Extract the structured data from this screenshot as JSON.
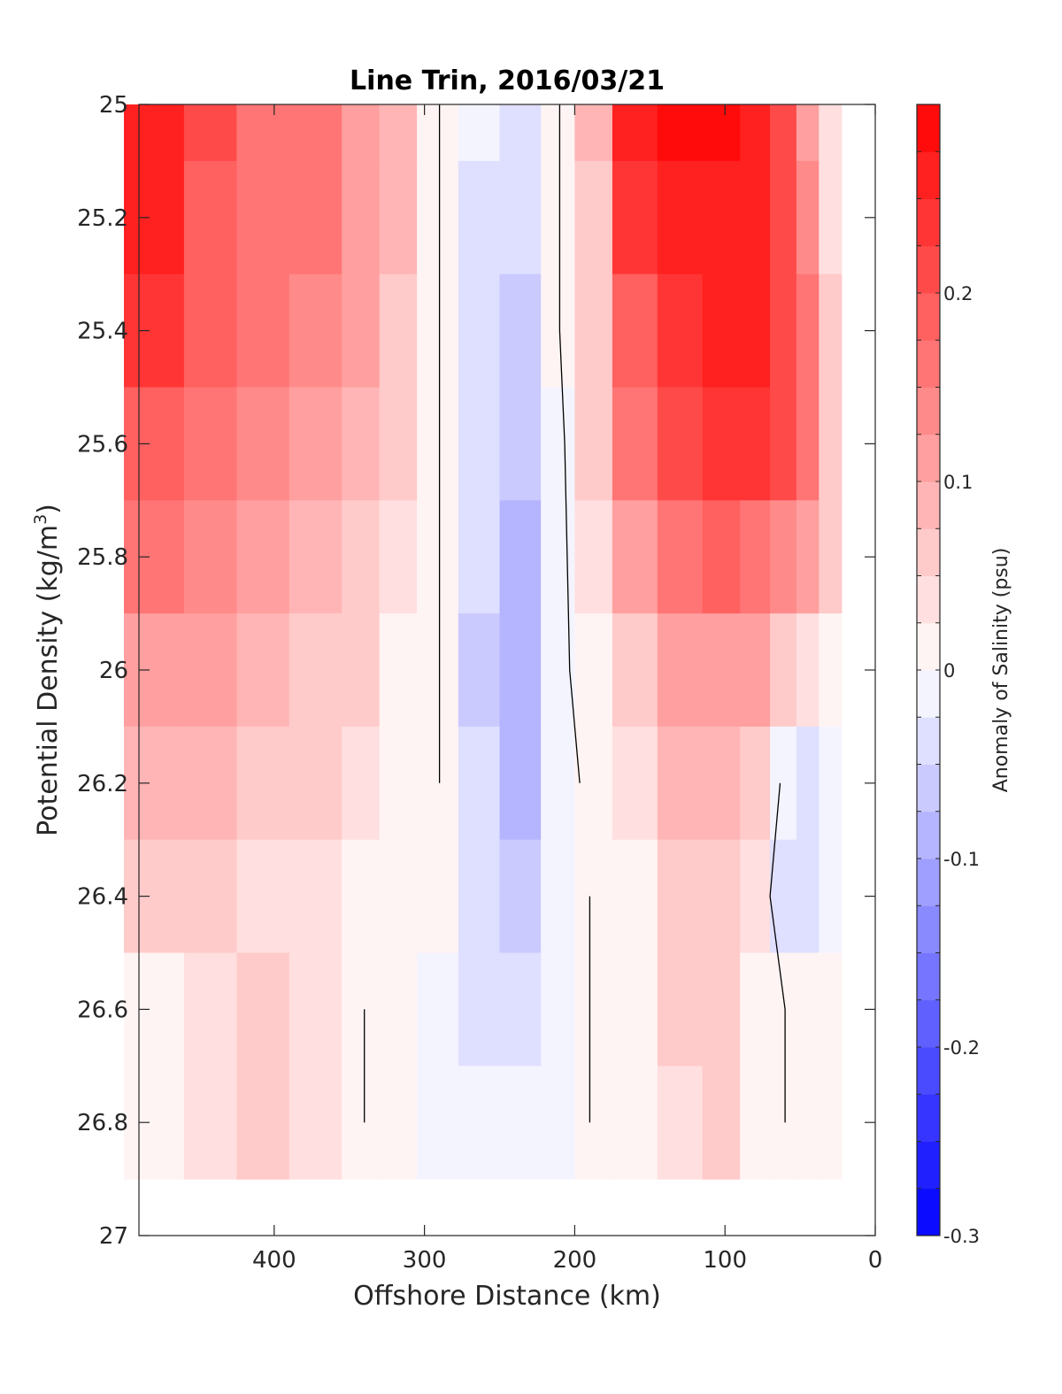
{
  "chart_data": {
    "type": "heatmap",
    "title": "Line Trin, 2016/03/21",
    "xlabel": "Offshore Distance (km)",
    "ylabel_main": "Potential Density (kg/m",
    "ylabel_sup": "3",
    "ylabel_close": ")",
    "colorbar_label": "Anomaly of Salinity (psu)",
    "x_reversed": true,
    "xlim": [
      0,
      490
    ],
    "ylim": [
      25,
      27
    ],
    "y_reversed": true,
    "x_ticks": [
      400,
      300,
      200,
      100,
      0
    ],
    "x_tick_labels": [
      "400",
      "300",
      "200",
      "100",
      "0"
    ],
    "y_ticks": [
      25,
      25.2,
      25.4,
      25.6,
      25.8,
      26,
      26.2,
      26.4,
      26.6,
      26.8,
      27
    ],
    "y_tick_labels": [
      "25",
      "25.2",
      "25.4",
      "25.6",
      "25.8",
      "26",
      "26.2",
      "26.4",
      "26.6",
      "26.8",
      "27"
    ],
    "clim": [
      -0.3,
      0.3
    ],
    "colorbar_ticks": [
      0.2,
      0.1,
      0,
      -0.1,
      -0.2,
      -0.3
    ],
    "colorbar_tick_labels": [
      "0.2",
      "0.1",
      "0",
      "-0.1",
      "-0.2",
      "-0.3"
    ],
    "colormap": "blue-white-red",
    "colormap_levels": 24,
    "distance_km": [
      480,
      440,
      410,
      370,
      340,
      320,
      290,
      265,
      235,
      210,
      190,
      160,
      130,
      100,
      80,
      60,
      45,
      30
    ],
    "density": [
      25.0,
      25.2,
      25.4,
      25.6,
      25.8,
      26.0,
      26.2,
      26.4,
      26.6,
      26.8
    ],
    "salinity_anomaly": [
      [
        0.27,
        0.2,
        0.17,
        0.17,
        0.12,
        0.09,
        0.0,
        -0.02,
        -0.04,
        0.0,
        0.09,
        0.25,
        0.28,
        0.28,
        0.26,
        0.21,
        0.12,
        0.03
      ],
      [
        0.26,
        0.19,
        0.16,
        0.16,
        0.12,
        0.08,
        0.0,
        -0.03,
        -0.05,
        0.0,
        0.07,
        0.23,
        0.27,
        0.27,
        0.25,
        0.22,
        0.14,
        0.04
      ],
      [
        0.23,
        0.18,
        0.15,
        0.14,
        0.11,
        0.07,
        0.0,
        -0.03,
        -0.06,
        0.0,
        0.06,
        0.19,
        0.23,
        0.25,
        0.26,
        0.22,
        0.15,
        0.06
      ],
      [
        0.19,
        0.16,
        0.13,
        0.12,
        0.09,
        0.05,
        0.0,
        -0.04,
        -0.07,
        -0.01,
        0.05,
        0.15,
        0.2,
        0.23,
        0.23,
        0.2,
        0.15,
        0.07
      ],
      [
        0.16,
        0.13,
        0.11,
        0.09,
        0.07,
        0.03,
        0.0,
        -0.05,
        -0.08,
        -0.01,
        0.03,
        0.1,
        0.15,
        0.18,
        0.17,
        0.14,
        0.1,
        0.05
      ],
      [
        0.12,
        0.11,
        0.08,
        0.07,
        0.05,
        0.02,
        0.0,
        -0.06,
        -0.09,
        -0.01,
        0.02,
        0.06,
        0.1,
        0.12,
        0.1,
        0.07,
        0.04,
        0.01
      ],
      [
        0.09,
        0.08,
        0.06,
        0.05,
        0.03,
        0.01,
        0.0,
        -0.05,
        -0.08,
        -0.02,
        0.01,
        0.04,
        0.08,
        0.09,
        0.05,
        -0.01,
        -0.03,
        -0.01
      ],
      [
        0.06,
        0.05,
        0.04,
        0.03,
        0.02,
        0.0,
        0.0,
        -0.04,
        -0.06,
        -0.02,
        0.0,
        0.02,
        0.06,
        0.07,
        0.03,
        -0.03,
        -0.05,
        -0.02
      ],
      [
        0.01,
        0.03,
        0.05,
        0.03,
        0.0,
        0.0,
        -0.02,
        -0.03,
        -0.03,
        -0.02,
        0.0,
        0.01,
        0.05,
        0.06,
        0.02,
        0.0,
        0.0,
        0.0
      ],
      [
        0.0,
        0.03,
        0.05,
        0.03,
        0.0,
        0.0,
        -0.02,
        -0.02,
        -0.02,
        -0.02,
        0.0,
        0.01,
        0.04,
        0.05,
        0.01,
        0.0,
        0.02,
        0.0
      ]
    ]
  }
}
